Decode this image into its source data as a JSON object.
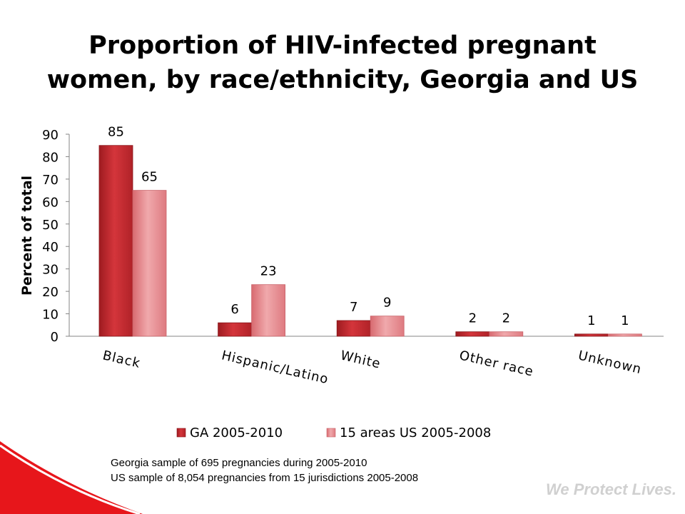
{
  "slide": {
    "title_line1": "Proportion of HIV-infected pregnant",
    "title_line2": "women, by race/ethnicity, Georgia and US",
    "note_line1": "Georgia sample of 695 pregnancies during 2005-2010",
    "note_line2": "US sample of 8,054 pregnancies from 15 jurisdictions 2005-2008",
    "tagline": "We Protect Lives."
  },
  "chart_data": {
    "type": "bar",
    "title": "Proportion of HIV-infected pregnant women, by race/ethnicity, Georgia and US",
    "xlabel": "",
    "ylabel": "Percent of total",
    "ylim": [
      0,
      90
    ],
    "yticks": [
      0,
      10,
      20,
      30,
      40,
      50,
      60,
      70,
      80,
      90
    ],
    "grid": false,
    "legend_position": "bottom",
    "categories": [
      "Black",
      "Hispanic/Latino",
      "White",
      "Other race",
      "Unknown"
    ],
    "series": [
      {
        "name": "GA 2005-2010",
        "values": [
          85,
          6,
          7,
          2,
          1
        ],
        "color": "#c4262c"
      },
      {
        "name": "15 areas US 2005-2008",
        "values": [
          65,
          23,
          9,
          2,
          1
        ],
        "color": "#e88f93"
      }
    ]
  }
}
